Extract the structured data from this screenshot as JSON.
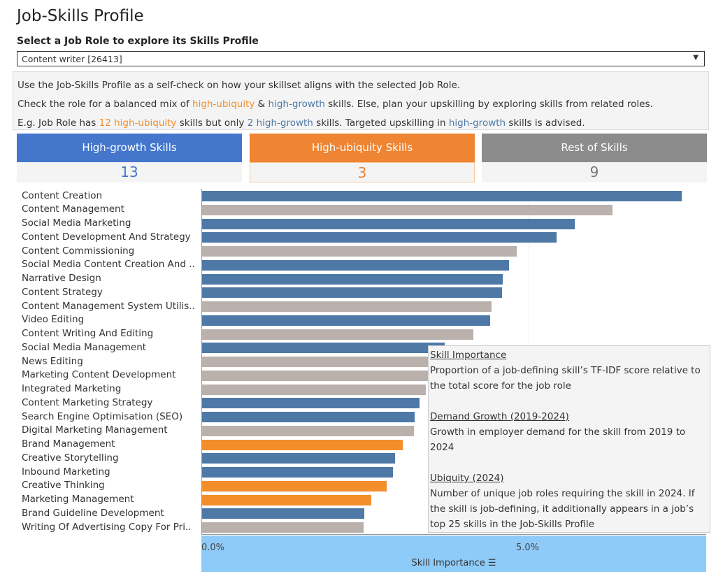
{
  "title": "Job-Skills Profile",
  "selector": {
    "label": "Select a Job Role to explore its Skills Profile",
    "value": "Content writer [26413]"
  },
  "info": {
    "line1": "Use the Job-Skills Profile as a self-check on how your skillset aligns with the selected Job Role.",
    "line2a": "Check the role for a balanced mix of ",
    "line2b": "high-ubiquity",
    "line2c": " & ",
    "line2d": "high-growth",
    "line2e": " skills. Else, plan your upskilling by exploring skills from related roles.",
    "line3a": "E.g. Job Role has ",
    "line3b": "12 high-ubiquity",
    "line3c": " skills but only ",
    "line3d": "2 high-growth",
    "line3e": " skills. Targeted upskilling in ",
    "line3f": "high-growth",
    "line3g": " skills is advised."
  },
  "cards": [
    {
      "label": "High-growth Skills",
      "count": "13",
      "color": "#4477cc"
    },
    {
      "label": "High-ubiquity Skills",
      "count": "3",
      "color": "#ef8432"
    },
    {
      "label": "Rest of Skills",
      "count": "9",
      "color": "#8c8c8c"
    }
  ],
  "colors": {
    "high-growth": "#4e79a7",
    "high-ubiquity": "#f28e2b",
    "rest": "#bab0ac"
  },
  "chart_data": {
    "type": "bar",
    "orientation": "horizontal",
    "xlabel": "Skill Importance",
    "xlim": [
      0,
      7.7
    ],
    "x_ticks": [
      "0.0%",
      "5.0%"
    ],
    "categories": [
      "Content Creation",
      "Content Management",
      "Social Media Marketing",
      "Content Development And Strategy",
      "Content Commissioning",
      "Social Media Content Creation And ..",
      "Narrative Design",
      "Content Strategy",
      "Content Management System Utilis..",
      "Video Editing",
      "Content Writing And Editing",
      "Social Media Management",
      "News Editing",
      "Marketing Content Development",
      "Integrated Marketing",
      "Content Marketing Strategy",
      "Search Engine Optimisation (SEO)",
      "Digital Marketing Management",
      "Brand Management",
      "Creative Storytelling",
      "Inbound Marketing",
      "Creative Thinking",
      "Marketing Management",
      "Brand Guideline Development",
      "Writing Of Advertising Copy For Pri.."
    ],
    "values": [
      7.35,
      6.29,
      5.71,
      5.43,
      4.82,
      4.7,
      4.6,
      4.59,
      4.43,
      4.41,
      4.15,
      3.72,
      3.6,
      3.5,
      3.43,
      3.33,
      3.25,
      3.24,
      3.07,
      2.95,
      2.92,
      2.83,
      2.59,
      2.48,
      2.47
    ],
    "groups": [
      "high-growth",
      "rest",
      "high-growth",
      "high-growth",
      "rest",
      "high-growth",
      "high-growth",
      "high-growth",
      "rest",
      "high-growth",
      "rest",
      "high-growth",
      "rest",
      "rest",
      "rest",
      "high-growth",
      "high-growth",
      "rest",
      "high-ubiquity",
      "high-growth",
      "high-growth",
      "high-ubiquity",
      "high-ubiquity",
      "high-growth",
      "rest"
    ]
  },
  "tooltip": {
    "h1": "Skill Importance",
    "t1": "Proportion of a job-defining skill’s TF-IDF score relative to the total score for the job role",
    "h2": "Demand Growth (2019-2024)",
    "t2": "Growth in employer demand for the skill from 2019 to 2024",
    "h3": "Ubiquity (2024)",
    "t3": "Number of unique job roles requiring the skill in 2024. If the skill is job-defining, it additionally appears in a job’s top 25 skills in the Job-Skills Profile"
  }
}
